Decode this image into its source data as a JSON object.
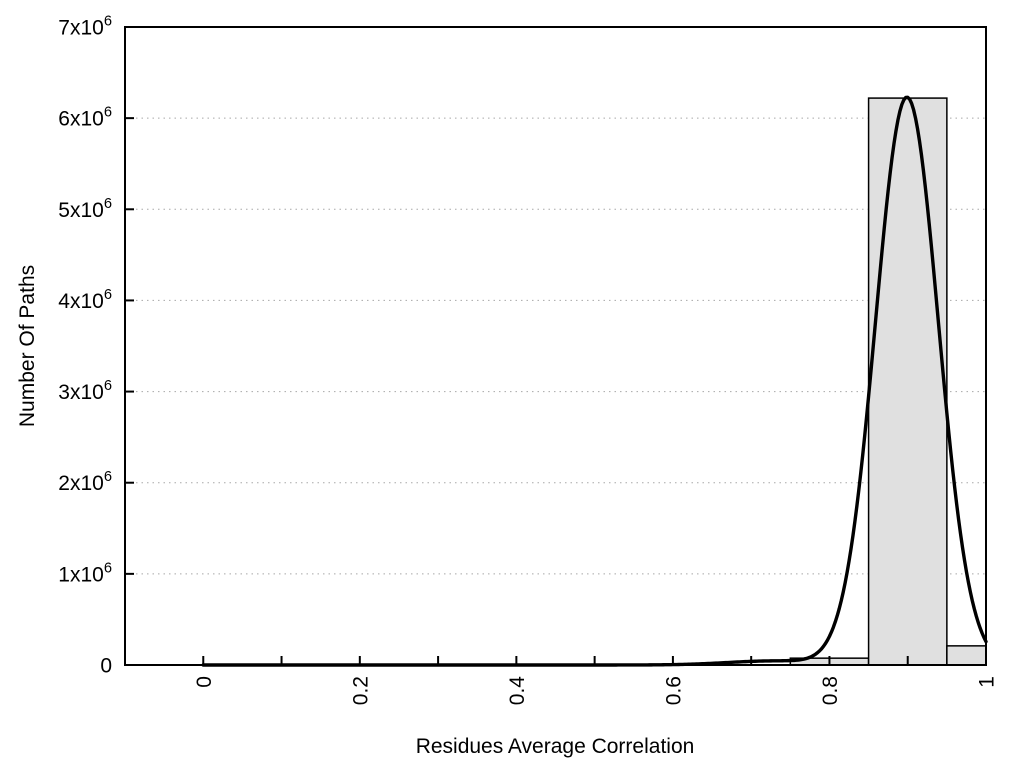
{
  "chart_data": {
    "type": "bar",
    "title": "",
    "xlabel": "Residues Average Correlation",
    "ylabel": "Number Of Paths",
    "xlim": [
      -0.1,
      1.0
    ],
    "ylim": [
      0,
      7000000
    ],
    "grid": "horizontal-dotted",
    "legend": "none",
    "xticks_major": [
      0,
      0.2,
      0.4,
      0.6,
      0.8,
      1.0
    ],
    "xtick_labels": [
      "0",
      "0.2",
      "0.4",
      "0.6",
      "0.8",
      "1"
    ],
    "xticks_minor": [
      0.1,
      0.3,
      0.5,
      0.7,
      0.9
    ],
    "yticks": [
      0,
      1000000,
      2000000,
      3000000,
      4000000,
      5000000,
      6000000,
      7000000
    ],
    "ytick_labels": [
      "0",
      "1x10^6",
      "2x10^6",
      "3x10^6",
      "4x10^6",
      "5x10^6",
      "6x10^6",
      "7x10^6"
    ],
    "histogram_bins": [
      {
        "x0": 0.75,
        "x1": 0.85,
        "count": 75000
      },
      {
        "x0": 0.85,
        "x1": 0.95,
        "count": 6220000
      },
      {
        "x0": 0.95,
        "x1": 1.0,
        "count": 210000
      }
    ],
    "fit_curve": {
      "name": "density-fit-curve",
      "x_range": [
        0.0,
        1.0
      ],
      "peak_x": 0.9,
      "peak_y": 6230000,
      "components": [
        {
          "amplitude": 6230000,
          "mean": 0.899,
          "sigma": 0.04
        },
        {
          "amplitude": 45000,
          "mean": 0.73,
          "sigma": 0.06
        }
      ]
    },
    "colors": {
      "background": "#ffffff",
      "bar_fill": "#e0e0e0",
      "bar_edge": "#000000",
      "curve": "#000000",
      "border": "#000000",
      "grid": "#a8a8a8",
      "text": "#000000"
    }
  }
}
